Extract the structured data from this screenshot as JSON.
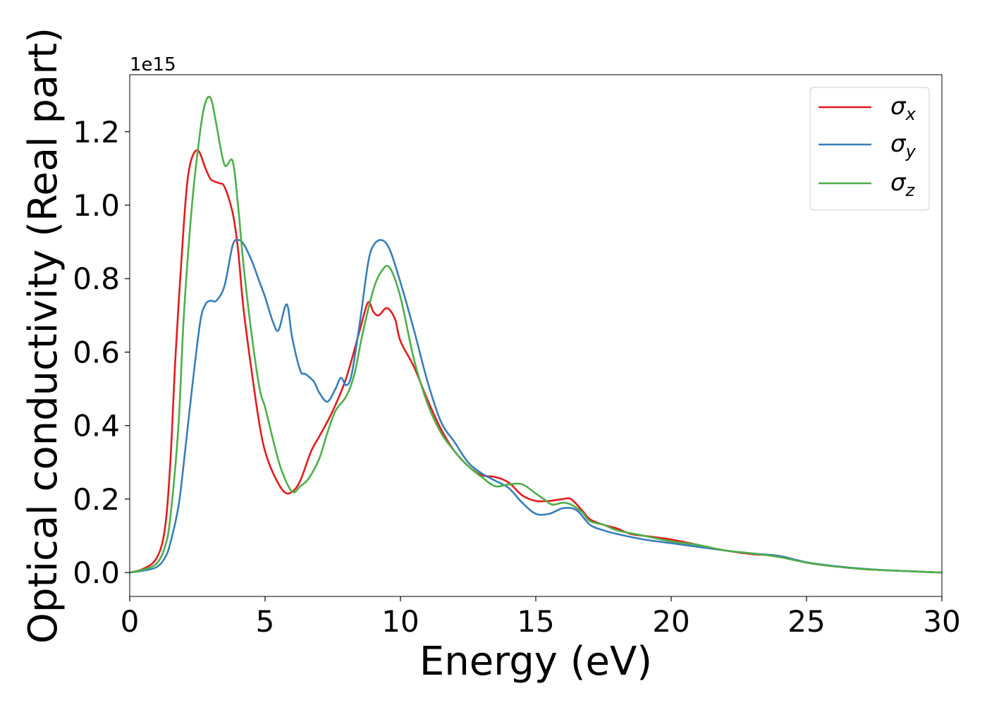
{
  "chart_data": {
    "type": "line",
    "title": "",
    "xlabel": "Energy (eV)",
    "ylabel": "Optical conductivity (Real part)",
    "offset_label": "1e15",
    "y_scale_factor": 1000000000000000.0,
    "xlim": [
      0,
      30
    ],
    "ylim": [
      -0.065,
      1.355
    ],
    "x_ticks": [
      0,
      5,
      10,
      15,
      20,
      25,
      30
    ],
    "x_tick_labels": [
      "0",
      "5",
      "10",
      "15",
      "20",
      "25",
      "30"
    ],
    "y_ticks": [
      0.0,
      0.2,
      0.4,
      0.6,
      0.8,
      1.0,
      1.2
    ],
    "y_tick_labels": [
      "0.0",
      "0.2",
      "0.4",
      "0.6",
      "0.8",
      "1.0",
      "1.2"
    ],
    "grid": false,
    "legend_position": "top-right",
    "series": [
      {
        "name": "σx",
        "symbol": "σ",
        "subscript": "x",
        "color": "#e41a1c",
        "x": [
          0,
          0.5,
          1.0,
          1.3,
          1.5,
          1.7,
          2.0,
          2.2,
          2.5,
          2.8,
          3.0,
          3.3,
          3.5,
          3.8,
          4.0,
          4.2,
          4.5,
          4.8,
          5.0,
          5.3,
          5.7,
          6.0,
          6.3,
          6.7,
          7.0,
          7.5,
          8.0,
          8.5,
          8.8,
          9.0,
          9.2,
          9.5,
          9.8,
          10.0,
          10.5,
          11.0,
          11.5,
          12.0,
          12.5,
          13.0,
          13.5,
          14.0,
          14.5,
          15.0,
          15.5,
          16.0,
          16.3,
          16.7,
          17.0,
          17.5,
          18.0,
          18.5,
          19.0,
          20.0,
          21.0,
          22.0,
          23.0,
          24.0,
          25.0,
          26.0,
          27.0,
          28.0,
          29.0,
          30.0
        ],
        "y": [
          0.0,
          0.01,
          0.04,
          0.12,
          0.3,
          0.6,
          0.95,
          1.1,
          1.15,
          1.1,
          1.07,
          1.06,
          1.05,
          0.98,
          0.88,
          0.72,
          0.55,
          0.4,
          0.33,
          0.27,
          0.22,
          0.22,
          0.25,
          0.33,
          0.37,
          0.44,
          0.53,
          0.66,
          0.735,
          0.71,
          0.7,
          0.72,
          0.69,
          0.63,
          0.56,
          0.47,
          0.39,
          0.33,
          0.29,
          0.265,
          0.26,
          0.245,
          0.21,
          0.195,
          0.195,
          0.2,
          0.2,
          0.17,
          0.145,
          0.13,
          0.12,
          0.105,
          0.1,
          0.09,
          0.075,
          0.06,
          0.05,
          0.045,
          0.027,
          0.017,
          0.01,
          0.006,
          0.003,
          0.0
        ]
      },
      {
        "name": "σy",
        "symbol": "σ",
        "subscript": "y",
        "color": "#377eb8",
        "x": [
          0,
          0.5,
          1.0,
          1.3,
          1.5,
          1.8,
          2.0,
          2.3,
          2.6,
          2.8,
          3.0,
          3.2,
          3.5,
          3.8,
          4.0,
          4.2,
          4.5,
          4.8,
          5.0,
          5.3,
          5.5,
          5.8,
          6.0,
          6.3,
          6.5,
          6.8,
          7.0,
          7.3,
          7.6,
          7.8,
          8.0,
          8.2,
          8.5,
          8.8,
          9.0,
          9.3,
          9.6,
          10.0,
          10.5,
          11.0,
          11.5,
          12.0,
          12.5,
          13.0,
          13.5,
          14.0,
          14.5,
          15.0,
          15.5,
          16.0,
          16.5,
          17.0,
          17.5,
          18.0,
          19.0,
          20.0,
          21.0,
          22.0,
          23.0,
          24.0,
          25.0,
          26.0,
          27.0,
          28.0,
          29.0,
          30.0
        ],
        "y": [
          0.0,
          0.005,
          0.015,
          0.04,
          0.08,
          0.18,
          0.3,
          0.5,
          0.68,
          0.73,
          0.74,
          0.74,
          0.78,
          0.89,
          0.905,
          0.895,
          0.85,
          0.79,
          0.75,
          0.68,
          0.66,
          0.73,
          0.64,
          0.55,
          0.54,
          0.52,
          0.49,
          0.465,
          0.5,
          0.53,
          0.51,
          0.54,
          0.68,
          0.84,
          0.89,
          0.905,
          0.88,
          0.79,
          0.66,
          0.52,
          0.41,
          0.355,
          0.3,
          0.27,
          0.25,
          0.23,
          0.19,
          0.16,
          0.16,
          0.175,
          0.17,
          0.13,
          0.115,
          0.105,
          0.09,
          0.08,
          0.07,
          0.06,
          0.052,
          0.045,
          0.028,
          0.018,
          0.011,
          0.006,
          0.003,
          0.0
        ]
      },
      {
        "name": "σz",
        "symbol": "σ",
        "subscript": "z",
        "color": "#4daf4a",
        "x": [
          0,
          0.5,
          1.0,
          1.3,
          1.5,
          1.8,
          2.0,
          2.3,
          2.6,
          2.8,
          3.0,
          3.2,
          3.5,
          3.8,
          4.0,
          4.2,
          4.5,
          4.8,
          5.0,
          5.3,
          5.6,
          6.0,
          6.3,
          6.6,
          7.0,
          7.3,
          7.6,
          8.0,
          8.3,
          8.6,
          9.0,
          9.3,
          9.6,
          10.0,
          10.5,
          11.0,
          11.5,
          12.0,
          12.5,
          13.0,
          13.5,
          14.0,
          14.5,
          15.0,
          15.3,
          15.6,
          16.0,
          16.3,
          16.7,
          17.0,
          17.5,
          18.0,
          19.0,
          20.0,
          21.0,
          22.0,
          23.0,
          24.0,
          25.0,
          26.0,
          27.0,
          28.0,
          29.0,
          30.0
        ],
        "y": [
          0.0,
          0.008,
          0.025,
          0.07,
          0.15,
          0.4,
          0.7,
          1.0,
          1.2,
          1.28,
          1.29,
          1.22,
          1.11,
          1.12,
          1.0,
          0.84,
          0.65,
          0.5,
          0.45,
          0.36,
          0.28,
          0.22,
          0.235,
          0.255,
          0.31,
          0.38,
          0.44,
          0.48,
          0.54,
          0.65,
          0.77,
          0.82,
          0.83,
          0.75,
          0.58,
          0.46,
          0.38,
          0.33,
          0.29,
          0.26,
          0.235,
          0.24,
          0.24,
          0.215,
          0.2,
          0.185,
          0.19,
          0.185,
          0.165,
          0.14,
          0.13,
          0.115,
          0.1,
          0.085,
          0.075,
          0.06,
          0.052,
          0.042,
          0.027,
          0.017,
          0.01,
          0.006,
          0.003,
          0.0
        ]
      }
    ]
  }
}
